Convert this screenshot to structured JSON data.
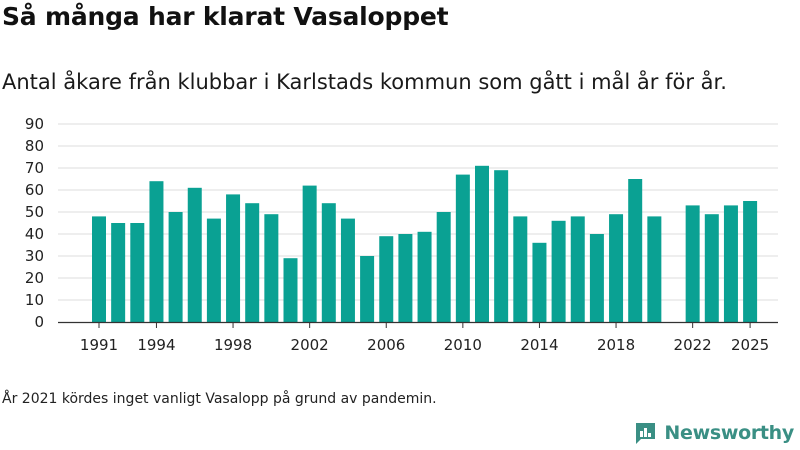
{
  "title": "Så många har klarat Vasaloppet",
  "subtitle": "Antal åkare från klubbar i Karlstads kommun som gått i mål år för år.",
  "footnote": "År 2021 kördes inget vanligt Vasalopp på grund av pandemin.",
  "brand": {
    "name": "Newsworthy",
    "icon": "chart-logo-icon",
    "color": "#3a8f84"
  },
  "chart_data": {
    "type": "bar",
    "bar_color": "#0aa193",
    "grid": true,
    "ylim": [
      0,
      90
    ],
    "y_ticks": [
      "0",
      "10",
      "20",
      "30",
      "40",
      "50",
      "60",
      "70",
      "80",
      "90"
    ],
    "x_ticks": [
      "1991",
      "1994",
      "1998",
      "2002",
      "2006",
      "2010",
      "2014",
      "2018",
      "2022",
      "2025"
    ],
    "categories": [
      "1991",
      "1992",
      "1993",
      "1994",
      "1995",
      "1996",
      "1997",
      "1998",
      "1999",
      "2000",
      "2001",
      "2002",
      "2003",
      "2004",
      "2005",
      "2006",
      "2007",
      "2008",
      "2009",
      "2010",
      "2011",
      "2012",
      "2013",
      "2014",
      "2015",
      "2016",
      "2017",
      "2018",
      "2019",
      "2020",
      "2021",
      "2022",
      "2023",
      "2024",
      "2025"
    ],
    "values": [
      48,
      45,
      45,
      64,
      50,
      61,
      47,
      58,
      54,
      49,
      29,
      62,
      54,
      47,
      30,
      39,
      40,
      41,
      50,
      67,
      71,
      69,
      48,
      36,
      46,
      48,
      40,
      49,
      65,
      48,
      null,
      53,
      49,
      53,
      55
    ]
  }
}
